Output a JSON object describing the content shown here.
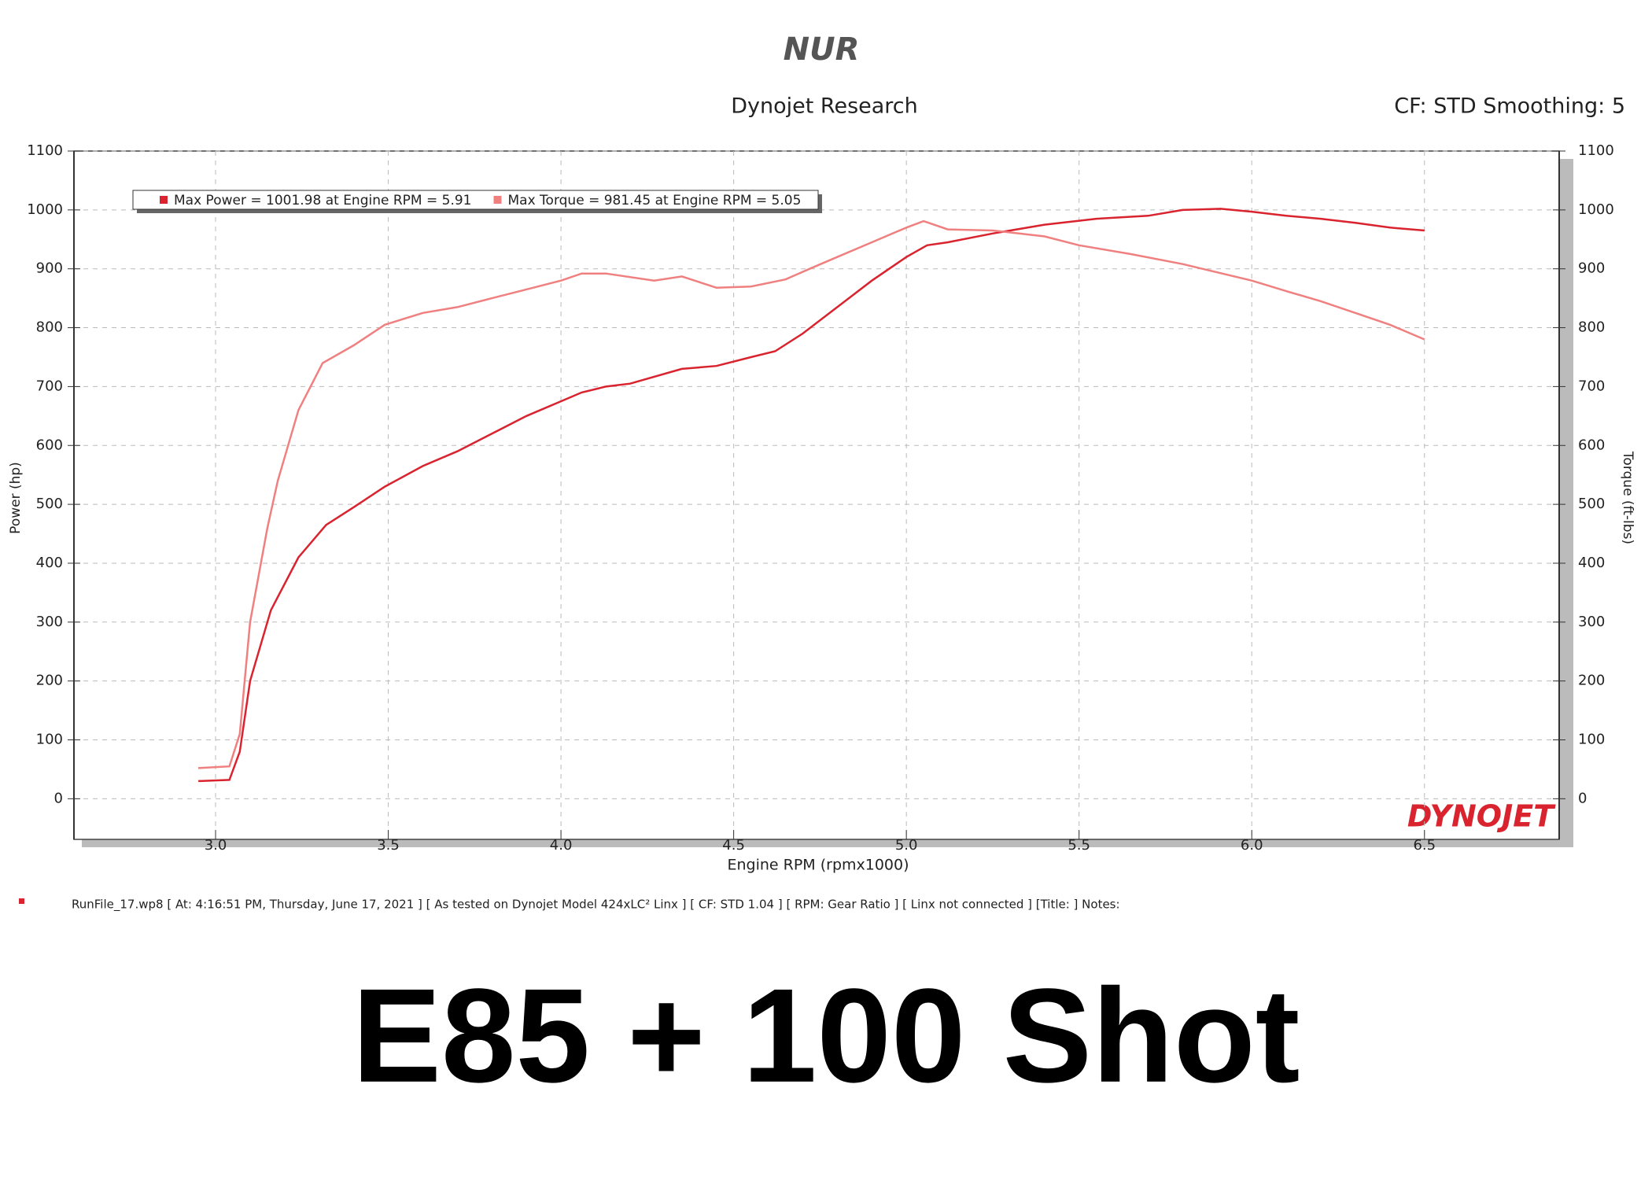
{
  "chart_data": {
    "type": "line",
    "logo": "NUR",
    "title": "Dynojet Research",
    "subtitle": "CF: STD Smoothing: 5",
    "watermark": "DYNOJET",
    "x_label": "Engine RPM (rpmx1000)",
    "y_label": "Power (hp)",
    "y2_label": "Torque (ft-lbs)",
    "footer": "RunFile_17.wp8 [ At: 4:16:51 PM, Thursday, June 17, 2021 ] [ As tested on Dynojet Model 424xLC² Linx ] [ CF: STD 1.04 ] [ RPM: Gear Ratio ] [ Linx not connected ] [Title: ]  Notes:",
    "caption": "E85 + 100 Shot",
    "grid": true,
    "xlim": [
      2.59,
      6.89
    ],
    "xticks": [
      {
        "value": 3,
        "label": "3.0"
      },
      3.5,
      {
        "value": 4,
        "label": "4.0"
      },
      4.5,
      {
        "value": 5,
        "label": "5.0"
      },
      5.5,
      {
        "value": 6,
        "label": "6.0"
      },
      6.5
    ],
    "ylim": [
      -69,
      1100
    ],
    "yticks": [
      0,
      100,
      200,
      300,
      400,
      500,
      600,
      700,
      800,
      900,
      1000,
      1100
    ],
    "y2lim": [
      -69,
      1100
    ],
    "y2ticks": [
      0,
      100,
      200,
      300,
      400,
      500,
      600,
      700,
      800,
      900,
      1000,
      1100
    ],
    "series": [
      {
        "name": "Max Power = 1001.98 at Engine RPM = 5.91",
        "color": "#d9232e",
        "x": [
          2.95,
          3.04,
          3.07,
          3.1,
          3.16,
          3.24,
          3.32,
          3.4,
          3.49,
          3.6,
          3.7,
          3.8,
          3.9,
          4.0,
          4.06,
          4.13,
          4.2,
          4.35,
          4.45,
          4.55,
          4.62,
          4.7,
          4.8,
          4.9,
          5.0,
          5.06,
          5.12,
          5.25,
          5.4,
          5.55,
          5.7,
          5.8,
          5.91,
          6.0,
          6.1,
          6.2,
          6.3,
          6.4,
          6.5
        ],
        "values": [
          30,
          32,
          80,
          200,
          320,
          410,
          465,
          495,
          530,
          565,
          590,
          620,
          650,
          675,
          690,
          700,
          705,
          730,
          735,
          750,
          760,
          790,
          835,
          880,
          920,
          940,
          945,
          960,
          975,
          985,
          990,
          1000,
          1002,
          997,
          990,
          985,
          978,
          970,
          965
        ]
      },
      {
        "name": "Max Torque = 981.45 at Engine RPM = 5.05",
        "color": "#f08080",
        "axis": "y2",
        "x": [
          2.95,
          3.04,
          3.07,
          3.1,
          3.15,
          3.18,
          3.24,
          3.31,
          3.4,
          3.49,
          3.6,
          3.7,
          3.8,
          3.9,
          4.0,
          4.06,
          4.13,
          4.27,
          4.35,
          4.45,
          4.55,
          4.65,
          4.72,
          4.8,
          4.9,
          5.0,
          5.05,
          5.12,
          5.25,
          5.4,
          5.5,
          5.65,
          5.8,
          6.0,
          6.1,
          6.2,
          6.3,
          6.4,
          6.5
        ],
        "values": [
          52,
          55,
          110,
          300,
          460,
          540,
          660,
          740,
          770,
          805,
          825,
          835,
          850,
          865,
          880,
          892,
          892,
          880,
          887,
          868,
          870,
          882,
          900,
          920,
          945,
          970,
          981,
          967,
          965,
          955,
          940,
          925,
          908,
          880,
          862,
          845,
          825,
          805,
          780
        ]
      }
    ]
  }
}
